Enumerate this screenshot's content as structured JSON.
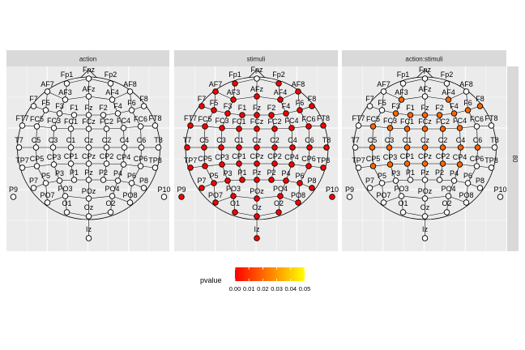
{
  "chart_data": {
    "type": "scatter",
    "panels": [
      {
        "strip": "action"
      },
      {
        "strip": "stimuli"
      },
      {
        "strip": "action:stimuli"
      }
    ],
    "row_strip": "80",
    "legend": {
      "title": "pvalue",
      "ticks": [
        "0.00",
        "0.01",
        "0.02",
        "0.03",
        "0.04",
        "0.05"
      ],
      "colors": [
        "#ff0000",
        "#ff7f00",
        "#ffff00"
      ],
      "range": [
        0,
        0.05
      ]
    },
    "not_significant_color": "#ffffff",
    "electrodes": [
      {
        "name": "Fp1",
        "lon": -18,
        "lat": 0,
        "p": [
          null,
          0.0,
          null
        ]
      },
      {
        "name": "Fpz",
        "lon": 0,
        "lat": 0,
        "p": [
          null,
          null,
          null
        ]
      },
      {
        "name": "Fp2",
        "lon": 18,
        "lat": 0,
        "p": [
          null,
          0.0,
          null
        ]
      },
      {
        "name": "AF7",
        "lon": -54,
        "lat": 0,
        "p": [
          null,
          0.0,
          null
        ]
      },
      {
        "name": "AF3",
        "lon": -28,
        "lat": -30,
        "p": [
          null,
          0.0,
          0.02
        ]
      },
      {
        "name": "AFz",
        "lon": 0,
        "lat": -22,
        "p": [
          null,
          0.0,
          null
        ]
      },
      {
        "name": "AF4",
        "lon": 28,
        "lat": -30,
        "p": [
          null,
          0.0,
          0.02
        ]
      },
      {
        "name": "AF8",
        "lon": 54,
        "lat": 0,
        "p": [
          null,
          0.0,
          null
        ]
      },
      {
        "name": "F7",
        "lon": -72,
        "lat": 0,
        "p": [
          null,
          0.0,
          null
        ]
      },
      {
        "name": "F5",
        "lon": -60,
        "lat": -24,
        "p": [
          null,
          0.0,
          null
        ]
      },
      {
        "name": "F3",
        "lon": -48,
        "lat": -38,
        "p": [
          null,
          0.0,
          0.02
        ]
      },
      {
        "name": "F1",
        "lon": -28,
        "lat": -48,
        "p": [
          null,
          0.0,
          0.02
        ]
      },
      {
        "name": "Fz",
        "lon": 0,
        "lat": -50,
        "p": [
          null,
          0.0,
          0.02
        ]
      },
      {
        "name": "F2",
        "lon": 28,
        "lat": -48,
        "p": [
          null,
          0.0,
          0.02
        ]
      },
      {
        "name": "F4",
        "lon": 48,
        "lat": -38,
        "p": [
          null,
          0.0,
          0.02
        ]
      },
      {
        "name": "F6",
        "lon": 60,
        "lat": -24,
        "p": [
          null,
          0.0,
          0.02
        ]
      },
      {
        "name": "F8",
        "lon": 72,
        "lat": 0,
        "p": [
          null,
          0.0,
          0.02
        ]
      },
      {
        "name": "FT7",
        "lon": -90,
        "lat": -2,
        "p": [
          null,
          0.0,
          null
        ]
      },
      {
        "name": "FC5",
        "lon": -80,
        "lat": -28,
        "p": [
          null,
          0.0,
          0.02
        ]
      },
      {
        "name": "FC3",
        "lon": -62,
        "lat": -50,
        "p": [
          null,
          0.0,
          0.02
        ]
      },
      {
        "name": "FC1",
        "lon": -42,
        "lat": -64,
        "p": [
          null,
          0.0,
          0.02
        ]
      },
      {
        "name": "FCz",
        "lon": 0,
        "lat": -68,
        "p": [
          null,
          0.0,
          0.02
        ]
      },
      {
        "name": "FC2",
        "lon": 42,
        "lat": -64,
        "p": [
          null,
          0.0,
          0.02
        ]
      },
      {
        "name": "FC4",
        "lon": 62,
        "lat": -50,
        "p": [
          null,
          0.0,
          0.02
        ]
      },
      {
        "name": "FC6",
        "lon": 80,
        "lat": -28,
        "p": [
          null,
          0.0,
          null
        ]
      },
      {
        "name": "FT8",
        "lon": 90,
        "lat": -2,
        "p": [
          null,
          0.0,
          null
        ]
      },
      {
        "name": "T7",
        "lon": -90,
        "lat": -30,
        "p": [
          null,
          0.0,
          null
        ]
      },
      {
        "name": "C5",
        "lon": -72,
        "lat": -30,
        "p": [
          null,
          0.0,
          0.02
        ]
      },
      {
        "name": "C3",
        "lon": -48,
        "lat": -30,
        "p": [
          null,
          0.0,
          0.02
        ]
      },
      {
        "name": "C1",
        "lon": -24,
        "lat": -30,
        "p": [
          null,
          0.0,
          0.02
        ]
      },
      {
        "name": "Cz",
        "lon": 0,
        "lat": -30,
        "p": [
          null,
          0.0,
          0.02
        ]
      },
      {
        "name": "C2",
        "lon": 24,
        "lat": -30,
        "p": [
          null,
          0.0,
          0.02
        ]
      },
      {
        "name": "C4",
        "lon": 48,
        "lat": -30,
        "p": [
          null,
          0.0,
          0.02
        ]
      },
      {
        "name": "C6",
        "lon": 72,
        "lat": -30,
        "p": [
          null,
          0.0,
          0.02
        ]
      },
      {
        "name": "T8",
        "lon": 90,
        "lat": -30,
        "p": [
          null,
          0.0,
          null
        ]
      },
      {
        "name": "TP7",
        "lon": -90,
        "lat": -58,
        "p": [
          null,
          0.0,
          null
        ]
      },
      {
        "name": "CP5",
        "lon": -80,
        "lat": -32,
        "p": [
          null,
          0.0,
          0.02
        ]
      },
      {
        "name": "CP3",
        "lon": -62,
        "lat": -10,
        "p": [
          null,
          0.0,
          0.02
        ]
      },
      {
        "name": "CP1",
        "lon": -42,
        "lat": 4,
        "p": [
          null,
          0.0,
          0.02
        ]
      },
      {
        "name": "CPz",
        "lon": 0,
        "lat": 8,
        "p": [
          null,
          0.0,
          0.02
        ]
      },
      {
        "name": "CP2",
        "lon": 42,
        "lat": 4,
        "p": [
          null,
          0.0,
          0.02
        ]
      },
      {
        "name": "CP4",
        "lon": 62,
        "lat": -10,
        "p": [
          null,
          0.0,
          0.02
        ]
      },
      {
        "name": "CP6",
        "lon": 80,
        "lat": -32,
        "p": [
          null,
          0.0,
          null
        ]
      },
      {
        "name": "TP8",
        "lon": 90,
        "lat": -58,
        "p": [
          null,
          0.0,
          null
        ]
      },
      {
        "name": "P9",
        "lon": -108,
        "lat": -72,
        "p": [
          null,
          0.0,
          null
        ]
      },
      {
        "name": "P7",
        "lon": -72,
        "lat": -60,
        "p": [
          null,
          0.0,
          null
        ]
      },
      {
        "name": "P5",
        "lon": -60,
        "lat": -36,
        "p": [
          null,
          0.0,
          null
        ]
      },
      {
        "name": "P3",
        "lon": -48,
        "lat": -22,
        "p": [
          null,
          0.0,
          null
        ]
      },
      {
        "name": "P1",
        "lon": -28,
        "lat": -12,
        "p": [
          null,
          0.0,
          null
        ]
      },
      {
        "name": "Pz",
        "lon": 0,
        "lat": -10,
        "p": [
          null,
          0.0,
          null
        ]
      },
      {
        "name": "P2",
        "lon": 28,
        "lat": -12,
        "p": [
          null,
          0.0,
          null
        ]
      },
      {
        "name": "P4",
        "lon": 48,
        "lat": -22,
        "p": [
          null,
          0.0,
          null
        ]
      },
      {
        "name": "P6",
        "lon": 60,
        "lat": -36,
        "p": [
          null,
          0.0,
          null
        ]
      },
      {
        "name": "P8",
        "lon": 72,
        "lat": -60,
        "p": [
          null,
          0.0,
          null
        ]
      },
      {
        "name": "P10",
        "lon": 108,
        "lat": -72,
        "p": [
          null,
          0.0,
          null
        ]
      },
      {
        "name": "PO7",
        "lon": -54,
        "lat": -62,
        "p": [
          null,
          0.0,
          null
        ]
      },
      {
        "name": "PO3",
        "lon": -28,
        "lat": -48,
        "p": [
          null,
          0.0,
          null
        ]
      },
      {
        "name": "POz",
        "lon": 0,
        "lat": -42,
        "p": [
          null,
          0.0,
          null
        ]
      },
      {
        "name": "PO4",
        "lon": 28,
        "lat": -48,
        "p": [
          null,
          0.0,
          null
        ]
      },
      {
        "name": "PO8",
        "lon": 54,
        "lat": -62,
        "p": [
          null,
          0.0,
          null
        ]
      },
      {
        "name": "O1",
        "lon": -18,
        "lat": -70,
        "p": [
          null,
          0.0,
          null
        ]
      },
      {
        "name": "Oz",
        "lon": 0,
        "lat": -72,
        "p": [
          null,
          0.0,
          null
        ]
      },
      {
        "name": "O2",
        "lon": 18,
        "lat": -70,
        "p": [
          null,
          0.0,
          null
        ]
      },
      {
        "name": "Iz",
        "lon": 0,
        "lat": -112,
        "p": [
          null,
          0.0,
          null
        ]
      }
    ]
  }
}
